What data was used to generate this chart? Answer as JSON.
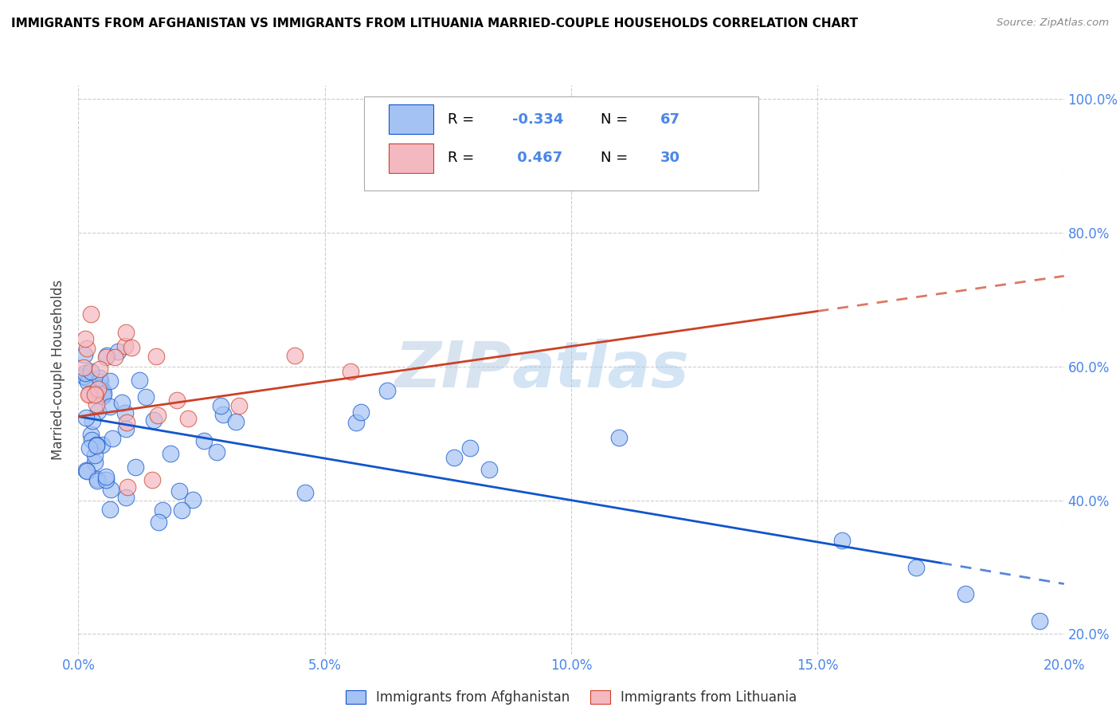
{
  "title": "IMMIGRANTS FROM AFGHANISTAN VS IMMIGRANTS FROM LITHUANIA MARRIED-COUPLE HOUSEHOLDS CORRELATION CHART",
  "source": "Source: ZipAtlas.com",
  "ylabel": "Married-couple Households",
  "xlabel_afghanistan": "Immigrants from Afghanistan",
  "xlabel_lithuania": "Immigrants from Lithuania",
  "legend_r_afghanistan": "-0.334",
  "legend_n_afghanistan": "67",
  "legend_r_lithuania": "0.467",
  "legend_n_lithuania": "30",
  "watermark_zip": "ZIP",
  "watermark_atlas": "atlas",
  "xlim": [
    0.0,
    0.2
  ],
  "ylim": [
    0.17,
    1.02
  ],
  "xticks": [
    0.0,
    0.05,
    0.1,
    0.15,
    0.2
  ],
  "yticks": [
    0.2,
    0.4,
    0.6,
    0.8,
    1.0
  ],
  "color_afghanistan": "#a4c2f4",
  "color_lithuania": "#f4b8c1",
  "color_trend_afghanistan": "#1155cc",
  "color_trend_lithuania": "#cc4125",
  "background_color": "#ffffff",
  "grid_color": "#cccccc",
  "title_color": "#000000",
  "tick_color": "#4a86e8",
  "legend_text_color": "#4a86e8",
  "legend_label_color": "#000000"
}
